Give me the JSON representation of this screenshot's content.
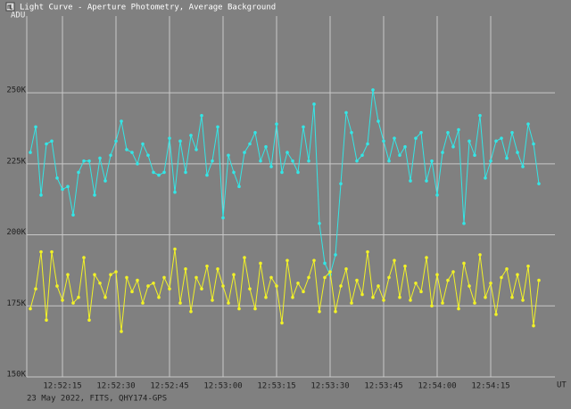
{
  "chart_data": {
    "type": "line",
    "title": "Light Curve - Aperture Photometry, Average Background",
    "y_label": "ADU",
    "x_label": "UT",
    "footer": "23 May 2022, FITS, QHY174-GPS",
    "x": [
      46326,
      46327.5,
      46329,
      46330.5,
      46332,
      46333.5,
      46335,
      46336.5,
      46338,
      46339.5,
      46341,
      46342.5,
      46344,
      46345.5,
      46347,
      46348.5,
      46350,
      46351.5,
      46353,
      46354.5,
      46356,
      46357.5,
      46359,
      46360.5,
      46362,
      46363.5,
      46365,
      46366.5,
      46368,
      46369.5,
      46371,
      46372.5,
      46374,
      46375.5,
      46377,
      46378.5,
      46380,
      46381.5,
      46383,
      46384.5,
      46386,
      46387.5,
      46389,
      46390.5,
      46392,
      46393.5,
      46395,
      46396.5,
      46398,
      46399.5,
      46401,
      46402.5,
      46404,
      46405.5,
      46407,
      46408.5,
      46410,
      46411.5,
      46413,
      46414.5,
      46416,
      46417.5,
      46419,
      46420.5,
      46422,
      46423.5,
      46425,
      46426.5,
      46428,
      46429.5,
      46431,
      46432.5,
      46434,
      46435.5,
      46437,
      46438.5,
      46440,
      46441.5,
      46443,
      46444.5,
      46446,
      46447.5,
      46449,
      46450.5,
      46452,
      46453.5,
      46455,
      46456.5,
      46458,
      46459.5,
      46461,
      46462.5,
      46464,
      46465.5,
      46467,
      46468.5
    ],
    "series": [
      {
        "color": "#33e6e6",
        "values": [
          229000,
          238000,
          214000,
          232000,
          233000,
          220000,
          216000,
          217000,
          207000,
          222000,
          226000,
          226000,
          214000,
          227000,
          219000,
          228000,
          233000,
          240000,
          230000,
          229000,
          225000,
          232000,
          228000,
          222000,
          221000,
          222000,
          234000,
          215000,
          233000,
          222000,
          235000,
          230000,
          242000,
          221000,
          226000,
          238000,
          206000,
          228000,
          222000,
          217000,
          229000,
          232000,
          236000,
          226000,
          231000,
          224000,
          239000,
          222000,
          229000,
          226000,
          222000,
          238000,
          226000,
          246000,
          204000,
          190000,
          186000,
          193000,
          218000,
          243000,
          236000,
          226000,
          228000,
          232000,
          251000,
          240000,
          233000,
          226000,
          234000,
          228000,
          231000,
          219000,
          234000,
          236000,
          219000,
          226000,
          214000,
          229000,
          236000,
          231000,
          237000,
          204000,
          233000,
          228000,
          242000,
          220000,
          226000,
          233000,
          234000,
          227000,
          236000,
          229000,
          224000,
          239000,
          232000,
          218000
        ]
      },
      {
        "color": "#f2f226",
        "values": [
          174000,
          181000,
          194000,
          170000,
          194000,
          182000,
          177000,
          186000,
          176000,
          178000,
          192000,
          170000,
          186000,
          183000,
          178000,
          186000,
          187000,
          166000,
          185000,
          180000,
          184000,
          176000,
          182000,
          183000,
          178000,
          185000,
          181000,
          195000,
          176000,
          188000,
          173000,
          185000,
          181000,
          189000,
          177000,
          188000,
          182000,
          176000,
          186000,
          174000,
          192000,
          181000,
          174000,
          190000,
          178000,
          185000,
          182000,
          169000,
          191000,
          178000,
          183000,
          180000,
          185000,
          191000,
          173000,
          185000,
          187000,
          173000,
          182000,
          188000,
          176000,
          184000,
          179000,
          194000,
          178000,
          182000,
          177000,
          185000,
          191000,
          178000,
          189000,
          177000,
          183000,
          180000,
          192000,
          175000,
          186000,
          176000,
          184000,
          187000,
          174000,
          190000,
          182000,
          176000,
          193000,
          178000,
          183000,
          172000,
          185000,
          188000,
          178000,
          186000,
          177000,
          189000,
          168000,
          184000
        ]
      }
    ],
    "xlim": [
      46325,
      46473
    ],
    "xticks": [
      {
        "value": 46335,
        "label": "12:52:15"
      },
      {
        "value": 46350,
        "label": "12:52:30"
      },
      {
        "value": 46365,
        "label": "12:52:45"
      },
      {
        "value": 46380,
        "label": "12:53:00"
      },
      {
        "value": 46395,
        "label": "12:53:15"
      },
      {
        "value": 46410,
        "label": "12:53:30"
      },
      {
        "value": 46425,
        "label": "12:53:45"
      },
      {
        "value": 46440,
        "label": "12:54:00"
      },
      {
        "value": 46455,
        "label": "12:54:15"
      }
    ],
    "ylim": [
      150000,
      277000
    ],
    "yticks": [
      {
        "value": 150000,
        "label": "150K"
      },
      {
        "value": 175000,
        "label": "175K"
      },
      {
        "value": 200000,
        "label": "200K"
      },
      {
        "value": 225000,
        "label": "225K"
      },
      {
        "value": 250000,
        "label": "250K"
      }
    ],
    "grid": true
  }
}
